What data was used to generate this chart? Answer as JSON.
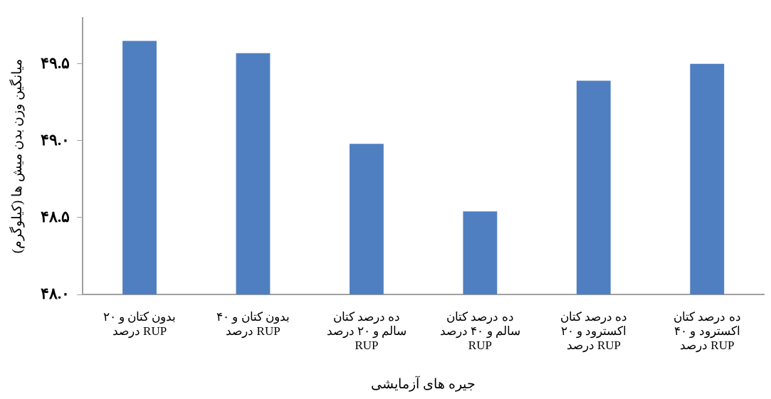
{
  "chart_data": {
    "type": "bar",
    "xlabel": "جیره های آزمایشی",
    "ylabel": "میانگین وزن بدن میش ها (کیلوگرم)",
    "categories": [
      "بدون کتان و ۲۰ درصد RUP",
      "بدون کتان و ۴۰ درصد RUP",
      "ده درصد کتان سالم و ۲۰ درصد RUP",
      "ده درصد کتان سالم و ۴۰ درصد RUP",
      "ده درصد کتان اکسترود و ۲۰ درصد RUP",
      "ده درصد کتان اکسترود و ۴۰ درصد RUP"
    ],
    "values": [
      49.65,
      49.57,
      48.98,
      48.54,
      49.39,
      49.5
    ],
    "color": "#4f7fc0",
    "ylim": [
      48,
      49.8
    ],
    "yticks": [
      {
        "value": 48,
        "label": "۴۸.۰"
      },
      {
        "value": 48.5,
        "label": "۴۸.۵"
      },
      {
        "value": 49,
        "label": "۴۹.۰"
      },
      {
        "value": 49.5,
        "label": "۴۹.۵"
      }
    ],
    "grid": false,
    "legend": false
  }
}
